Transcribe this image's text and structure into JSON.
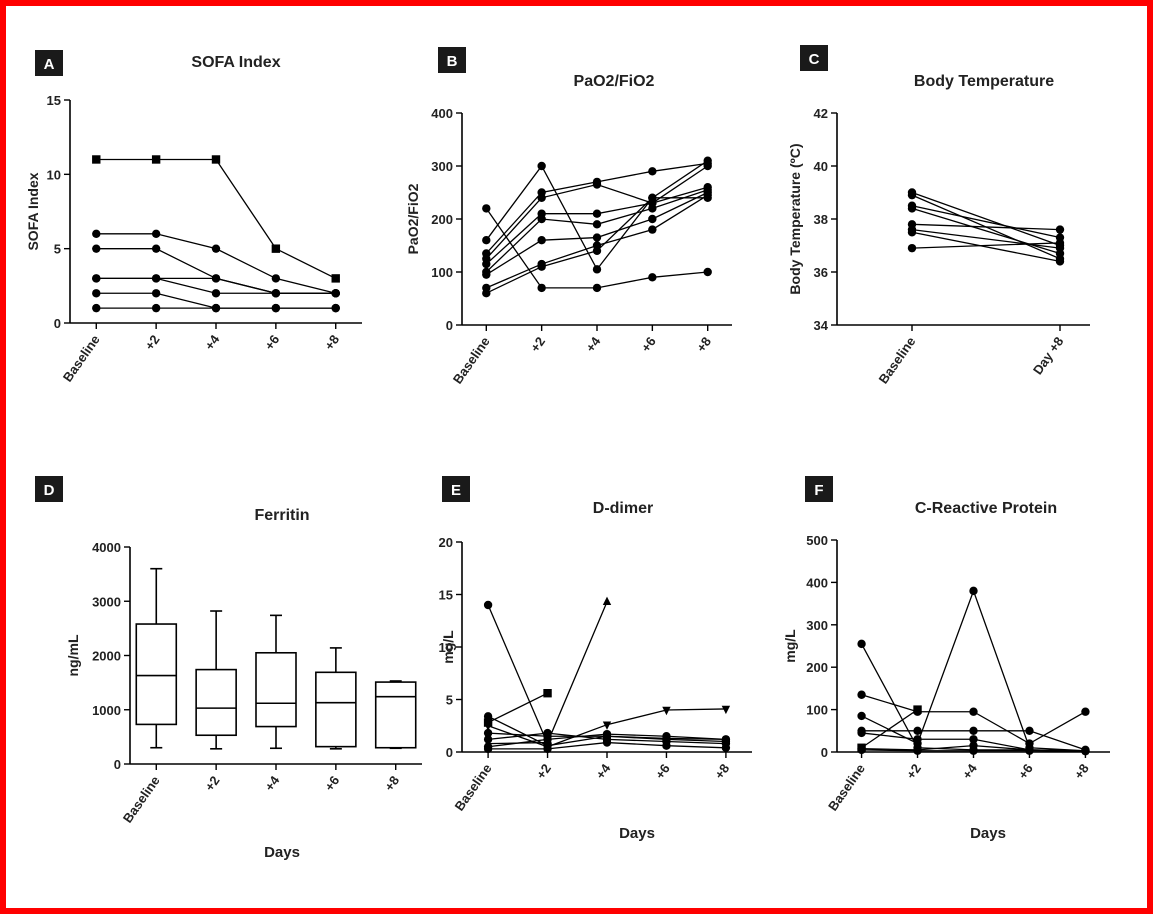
{
  "accent_color": "#ff0000",
  "chart_data": [
    {
      "panel": "A",
      "type": "line",
      "title": "SOFA Index",
      "ylabel": "SOFA Index",
      "xlabel": "",
      "categories": [
        "Baseline",
        "+2",
        "+4",
        "+6",
        "+8"
      ],
      "ylim": [
        0,
        15
      ],
      "yticks": [
        0,
        5,
        10,
        15
      ],
      "series": [
        {
          "marker": "square",
          "values": [
            11,
            11,
            11,
            5,
            3
          ]
        },
        {
          "marker": "circle",
          "values": [
            6,
            6,
            5,
            3,
            2
          ]
        },
        {
          "marker": "circle",
          "values": [
            5,
            5,
            3,
            2,
            2
          ]
        },
        {
          "marker": "circle",
          "values": [
            3,
            3,
            3,
            2,
            2
          ]
        },
        {
          "marker": "circle",
          "values": [
            3,
            3,
            2,
            2,
            2
          ]
        },
        {
          "marker": "circle",
          "values": [
            2,
            2,
            1,
            1,
            1
          ]
        },
        {
          "marker": "circle",
          "values": [
            1,
            1,
            1,
            1,
            1
          ]
        }
      ]
    },
    {
      "panel": "B",
      "type": "line",
      "title": "PaO2/FiO2",
      "ylabel": "PaO2/FiO2",
      "xlabel": "",
      "categories": [
        "Baseline",
        "+2",
        "+4",
        "+6",
        "+8"
      ],
      "ylim": [
        0,
        400
      ],
      "yticks": [
        0,
        100,
        200,
        300,
        400
      ],
      "series": [
        {
          "marker": "circle",
          "values": [
            220,
            70,
            70,
            90,
            100
          ]
        },
        {
          "marker": "circle",
          "values": [
            160,
            300,
            105,
            240,
            310
          ]
        },
        {
          "marker": "circle",
          "values": [
            135,
            250,
            270,
            290,
            305
          ]
        },
        {
          "marker": "circle",
          "values": [
            125,
            240,
            265,
            230,
            300
          ]
        },
        {
          "marker": "circle",
          "values": [
            115,
            210,
            210,
            230,
            260
          ]
        },
        {
          "marker": "circle",
          "values": [
            100,
            200,
            190,
            220,
            255
          ]
        },
        {
          "marker": "circle",
          "values": [
            95,
            160,
            165,
            200,
            250
          ]
        },
        {
          "marker": "circle",
          "values": [
            70,
            115,
            150,
            180,
            245
          ]
        },
        {
          "marker": "circle",
          "values": [
            60,
            110,
            140,
            240,
            240
          ]
        }
      ]
    },
    {
      "panel": "C",
      "type": "line",
      "title": "Body Temperature",
      "ylabel": "Body Temperature (ºC)",
      "xlabel": "",
      "categories": [
        "Baseline",
        "Day +8"
      ],
      "ylim": [
        34,
        42
      ],
      "yticks": [
        34,
        36,
        38,
        40,
        42
      ],
      "series": [
        {
          "marker": "circle",
          "values": [
            39.0,
            37.0
          ]
        },
        {
          "marker": "circle",
          "values": [
            38.9,
            36.5
          ]
        },
        {
          "marker": "circle",
          "values": [
            38.5,
            37.3
          ]
        },
        {
          "marker": "circle",
          "values": [
            38.4,
            36.7
          ]
        },
        {
          "marker": "circle",
          "values": [
            37.8,
            37.6
          ]
        },
        {
          "marker": "circle",
          "values": [
            37.6,
            36.9
          ]
        },
        {
          "marker": "circle",
          "values": [
            37.5,
            36.4
          ]
        },
        {
          "marker": "circle",
          "values": [
            36.9,
            37.1
          ]
        }
      ]
    },
    {
      "panel": "D",
      "type": "box",
      "title": "Ferritin",
      "ylabel": "ng/mL",
      "xlabel": "Days",
      "categories": [
        "Baseline",
        "+2",
        "+4",
        "+6",
        "+8"
      ],
      "ylim": [
        0,
        4000
      ],
      "yticks": [
        0,
        1000,
        2000,
        3000,
        4000
      ],
      "boxes": [
        {
          "min": 300,
          "q1": 730,
          "median": 1630,
          "q3": 2580,
          "max": 3600
        },
        {
          "min": 280,
          "q1": 530,
          "median": 1030,
          "q3": 1740,
          "max": 2820
        },
        {
          "min": 290,
          "q1": 690,
          "median": 1120,
          "q3": 2050,
          "max": 2740
        },
        {
          "min": 280,
          "q1": 320,
          "median": 1130,
          "q3": 1690,
          "max": 2140
        },
        {
          "min": 290,
          "q1": 300,
          "median": 1240,
          "q3": 1510,
          "max": 1530
        }
      ]
    },
    {
      "panel": "E",
      "type": "line",
      "title": "D-dimer",
      "ylabel": "mg/L",
      "xlabel": "Days",
      "categories": [
        "Baseline",
        "+2",
        "+4",
        "+6",
        "+8"
      ],
      "ylim": [
        0,
        20
      ],
      "yticks": [
        0,
        5,
        10,
        15,
        20
      ],
      "series": [
        {
          "marker": "circle",
          "values": [
            14.0,
            0.8,
            null,
            null,
            null
          ]
        },
        {
          "marker": "square",
          "values": [
            2.8,
            5.6,
            null,
            null,
            null
          ]
        },
        {
          "marker": "triangle",
          "values": [
            0.8,
            0.9,
            14.3,
            null,
            null
          ]
        },
        {
          "marker": "triangle-down",
          "values": [
            2.5,
            0.5,
            2.6,
            4.0,
            4.1
          ]
        },
        {
          "marker": "circle",
          "values": [
            3.4,
            0.6,
            1.5,
            1.3,
            1.2
          ]
        },
        {
          "marker": "circle",
          "values": [
            1.8,
            1.5,
            1.5,
            1.2,
            1.0
          ]
        },
        {
          "marker": "circle",
          "values": [
            1.2,
            1.8,
            1.2,
            1.0,
            0.8
          ]
        },
        {
          "marker": "circle",
          "values": [
            0.5,
            1.2,
            1.7,
            1.5,
            1.2
          ]
        },
        {
          "marker": "circle",
          "values": [
            0.3,
            0.3,
            0.9,
            0.6,
            0.4
          ]
        }
      ]
    },
    {
      "panel": "F",
      "type": "line",
      "title": "C-Reactive Protein",
      "ylabel": "mg/L",
      "xlabel": "Days",
      "categories": [
        "Baseline",
        "+2",
        "+4",
        "+6",
        "+8"
      ],
      "ylim": [
        0,
        500
      ],
      "yticks": [
        0,
        100,
        200,
        300,
        400,
        500
      ],
      "series": [
        {
          "marker": "circle",
          "values": [
            255,
            10,
            5,
            5,
            3
          ]
        },
        {
          "marker": "circle",
          "values": [
            135,
            95,
            95,
            20,
            95
          ]
        },
        {
          "marker": "circle",
          "values": [
            85,
            20,
            380,
            10,
            3
          ]
        },
        {
          "marker": "circle",
          "values": [
            50,
            50,
            50,
            50,
            5
          ]
        },
        {
          "marker": "circle",
          "values": [
            45,
            30,
            30,
            5,
            3
          ]
        },
        {
          "marker": "square",
          "values": [
            10,
            100,
            null,
            null,
            null
          ]
        },
        {
          "marker": "circle",
          "values": [
            8,
            5,
            15,
            5,
            2
          ]
        },
        {
          "marker": "circle",
          "values": [
            5,
            3,
            3,
            3,
            2
          ]
        }
      ]
    }
  ]
}
